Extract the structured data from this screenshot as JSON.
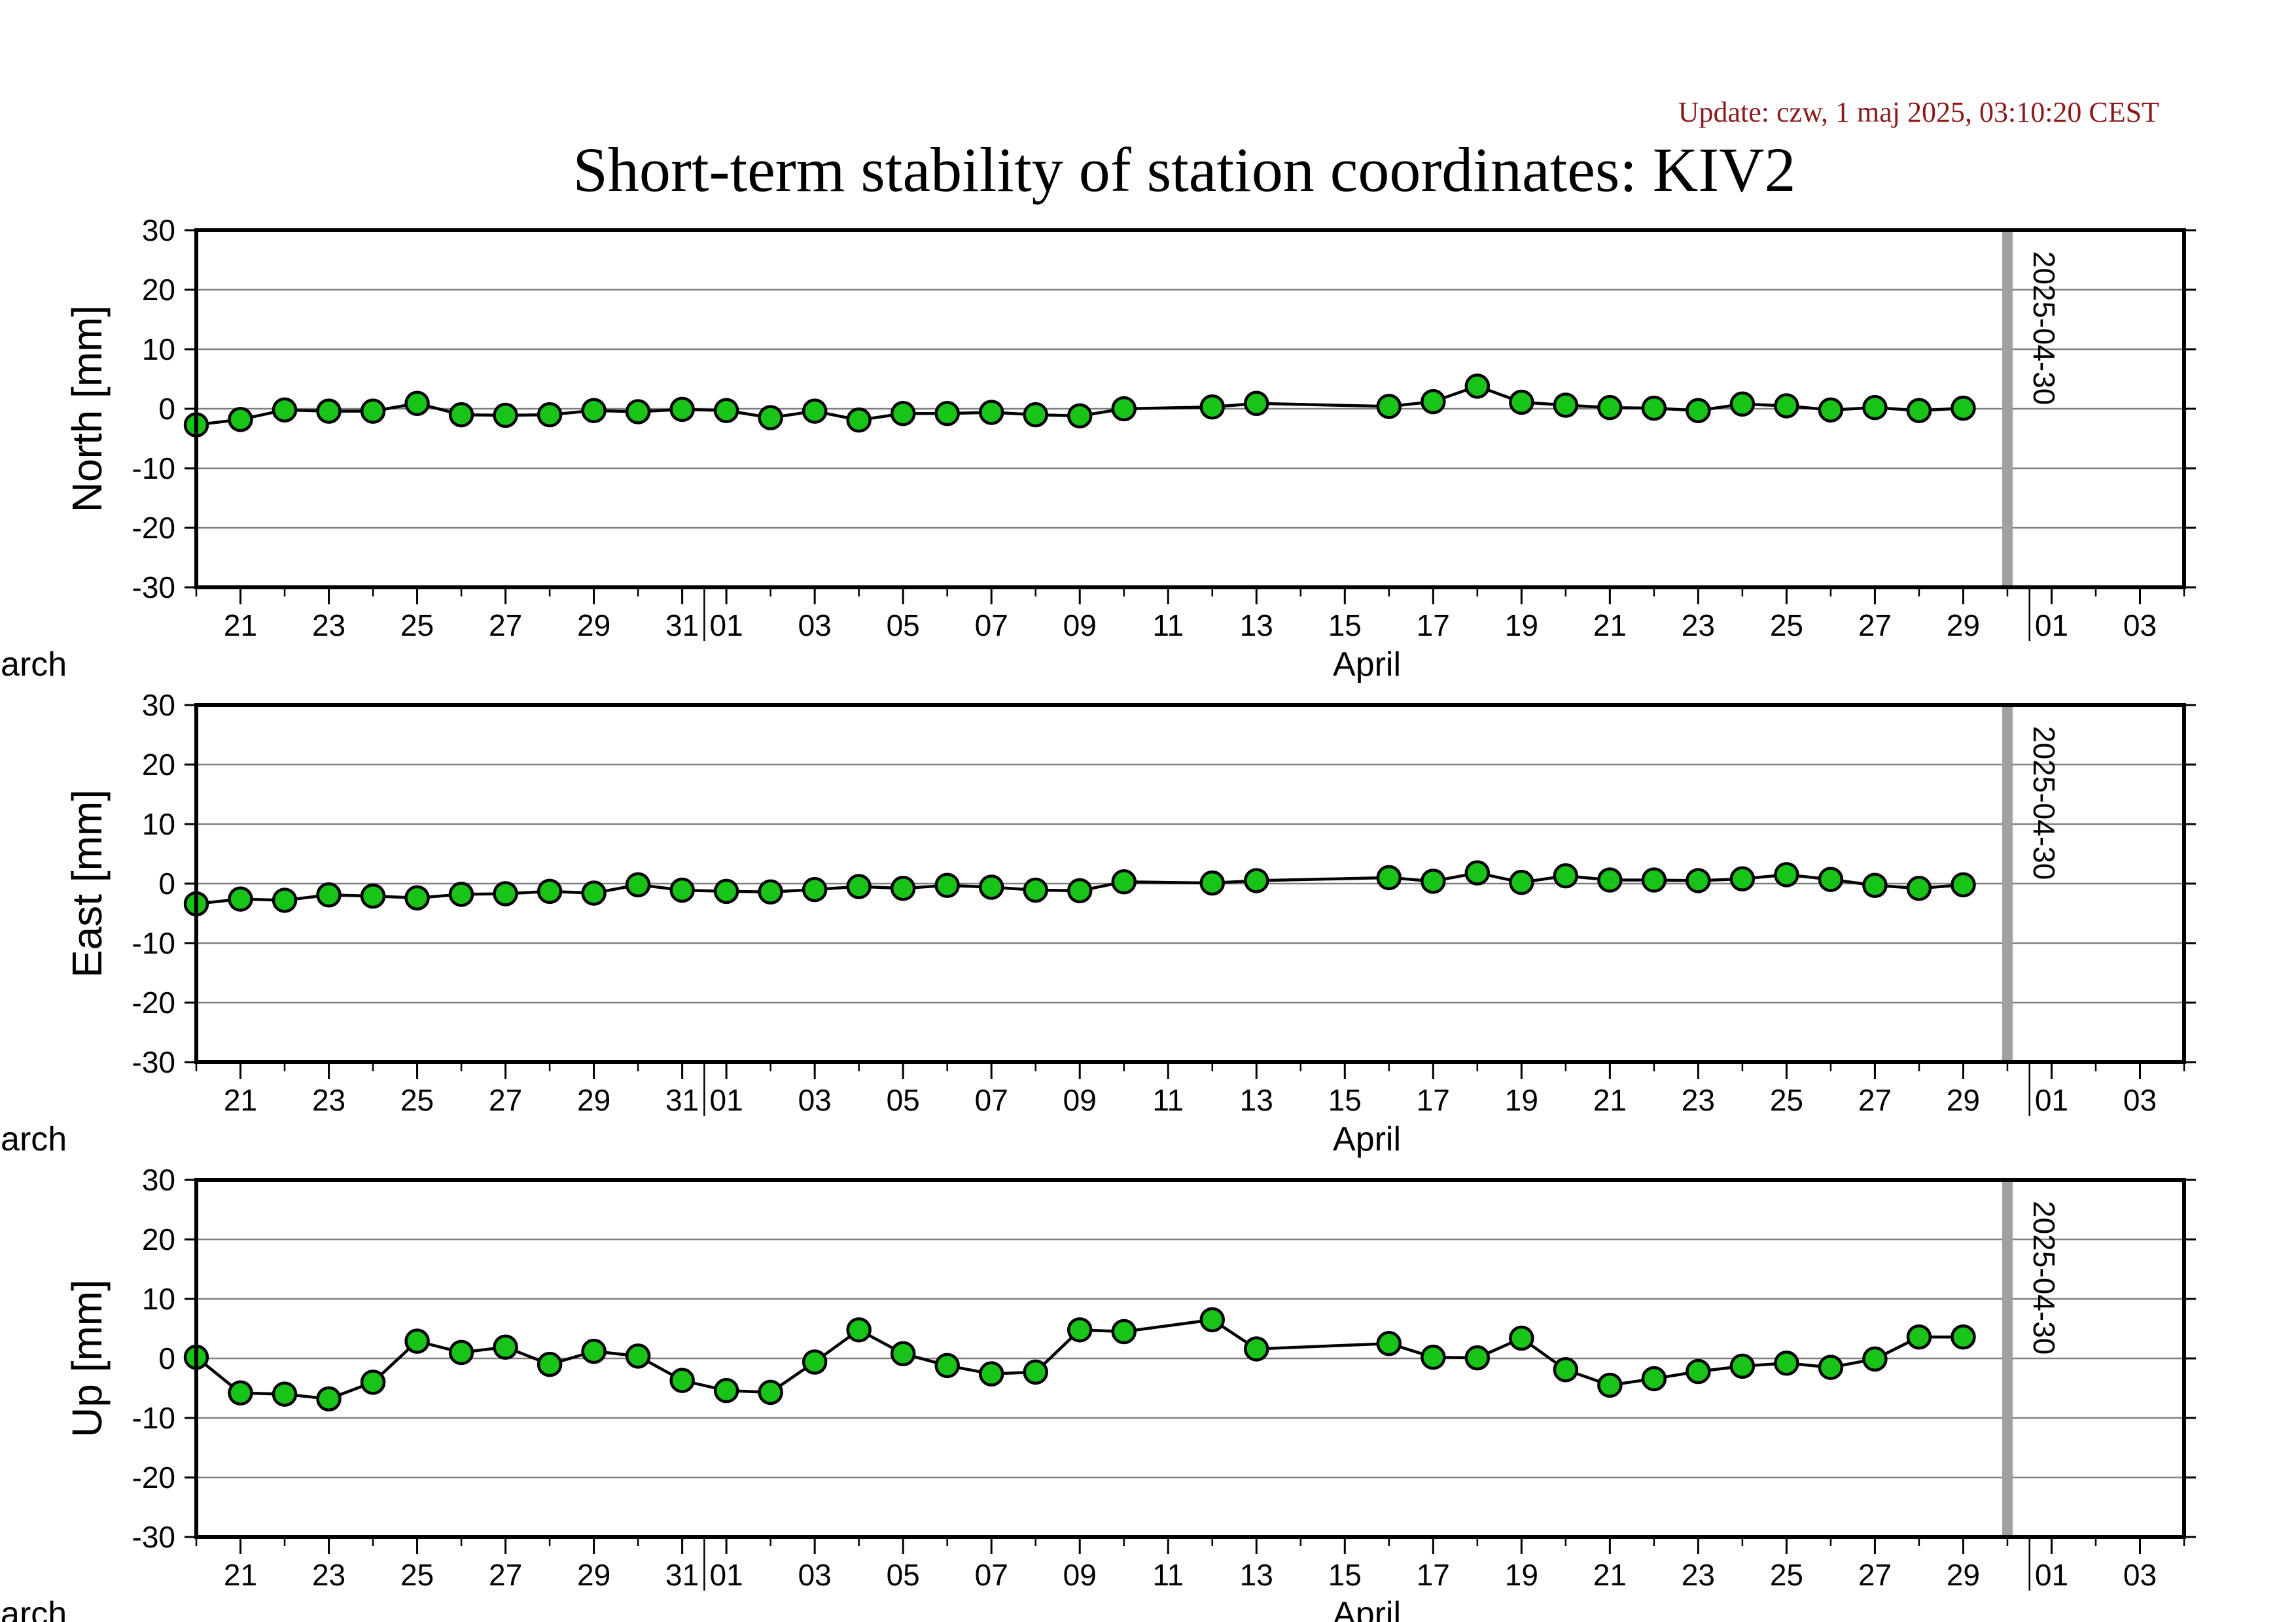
{
  "update_text": "Update: czw, 1 maj 2025, 03:10:20 CEST",
  "title": "Short-term stability of station coordinates: KIV2",
  "colors": {
    "marker_fill": "#18c418",
    "marker_stroke": "#000000",
    "line": "#000000",
    "grid": "#7f7f7f",
    "today_bar": "#a0a0a0",
    "update_text": "#8b1a1a",
    "axis": "#000000"
  },
  "chart_data": [
    {
      "type": "line",
      "ylabel": "North [mm]",
      "ylim": [
        -30,
        30
      ],
      "yticks": [
        "30",
        "20",
        "10",
        "0",
        "-10",
        "-20",
        "-30"
      ],
      "grid": true,
      "xlim": [
        "2025-03-20",
        "2025-05-04"
      ],
      "xticks": [
        "21",
        "23",
        "25",
        "27",
        "29",
        "31",
        "01",
        "03",
        "05",
        "07",
        "09",
        "11",
        "13",
        "15",
        "17",
        "19",
        "21",
        "23",
        "25",
        "27",
        "29",
        "01",
        "03"
      ],
      "months": [
        "March",
        "April"
      ],
      "today_label": "2025-04-30",
      "x": [
        "2025-03-20",
        "2025-03-21",
        "2025-03-22",
        "2025-03-23",
        "2025-03-24",
        "2025-03-25",
        "2025-03-26",
        "2025-03-27",
        "2025-03-28",
        "2025-03-29",
        "2025-03-30",
        "2025-03-31",
        "2025-04-01",
        "2025-04-02",
        "2025-04-03",
        "2025-04-04",
        "2025-04-05",
        "2025-04-06",
        "2025-04-07",
        "2025-04-08",
        "2025-04-09",
        "2025-04-10",
        "2025-04-12",
        "2025-04-13",
        "2025-04-16",
        "2025-04-17",
        "2025-04-18",
        "2025-04-19",
        "2025-04-20",
        "2025-04-21",
        "2025-04-22",
        "2025-04-23",
        "2025-04-24",
        "2025-04-25",
        "2025-04-26",
        "2025-04-27",
        "2025-04-28",
        "2025-04-29"
      ],
      "y": [
        -2.7,
        -1.8,
        -0.2,
        -0.4,
        -0.4,
        0.9,
        -1.0,
        -1.1,
        -1.0,
        -0.3,
        -0.5,
        -0.1,
        -0.3,
        -1.5,
        -0.4,
        -1.9,
        -0.8,
        -0.8,
        -0.6,
        -1.0,
        -1.2,
        0.0,
        0.3,
        0.9,
        0.4,
        1.2,
        3.8,
        1.1,
        0.6,
        0.2,
        0.1,
        -0.3,
        0.8,
        0.5,
        -0.2,
        0.2,
        -0.3,
        0.1
      ]
    },
    {
      "type": "line",
      "ylabel": "East [mm]",
      "ylim": [
        -30,
        30
      ],
      "yticks": [
        "30",
        "20",
        "10",
        "0",
        "-10",
        "-20",
        "-30"
      ],
      "grid": true,
      "xlim": [
        "2025-03-20",
        "2025-05-04"
      ],
      "xticks": [
        "21",
        "23",
        "25",
        "27",
        "29",
        "31",
        "01",
        "03",
        "05",
        "07",
        "09",
        "11",
        "13",
        "15",
        "17",
        "19",
        "21",
        "23",
        "25",
        "27",
        "29",
        "01",
        "03"
      ],
      "months": [
        "March",
        "April"
      ],
      "today_label": "2025-04-30",
      "x": [
        "2025-03-20",
        "2025-03-21",
        "2025-03-22",
        "2025-03-23",
        "2025-03-24",
        "2025-03-25",
        "2025-03-26",
        "2025-03-27",
        "2025-03-28",
        "2025-03-29",
        "2025-03-30",
        "2025-03-31",
        "2025-04-01",
        "2025-04-02",
        "2025-04-03",
        "2025-04-04",
        "2025-04-05",
        "2025-04-06",
        "2025-04-07",
        "2025-04-08",
        "2025-04-09",
        "2025-04-10",
        "2025-04-12",
        "2025-04-13",
        "2025-04-16",
        "2025-04-17",
        "2025-04-18",
        "2025-04-19",
        "2025-04-20",
        "2025-04-21",
        "2025-04-22",
        "2025-04-23",
        "2025-04-24",
        "2025-04-25",
        "2025-04-26",
        "2025-04-27",
        "2025-04-28",
        "2025-04-29"
      ],
      "y": [
        -3.4,
        -2.6,
        -2.8,
        -1.9,
        -2.1,
        -2.4,
        -1.8,
        -1.7,
        -1.3,
        -1.6,
        -0.2,
        -1.1,
        -1.3,
        -1.4,
        -1.0,
        -0.5,
        -0.8,
        -0.3,
        -0.6,
        -1.1,
        -1.2,
        0.3,
        0.1,
        0.5,
        1.0,
        0.4,
        1.8,
        0.2,
        1.3,
        0.6,
        0.6,
        0.5,
        0.8,
        1.5,
        0.7,
        -0.3,
        -0.8,
        -0.2
      ]
    },
    {
      "type": "line",
      "ylabel": "Up [mm]",
      "ylim": [
        -30,
        30
      ],
      "yticks": [
        "30",
        "20",
        "10",
        "0",
        "-10",
        "-20",
        "-30"
      ],
      "grid": true,
      "xlim": [
        "2025-03-20",
        "2025-05-04"
      ],
      "xticks": [
        "21",
        "23",
        "25",
        "27",
        "29",
        "31",
        "01",
        "03",
        "05",
        "07",
        "09",
        "11",
        "13",
        "15",
        "17",
        "19",
        "21",
        "23",
        "25",
        "27",
        "29",
        "01",
        "03"
      ],
      "months": [
        "March",
        "April"
      ],
      "today_label": "2025-04-30",
      "x": [
        "2025-03-20",
        "2025-03-21",
        "2025-03-22",
        "2025-03-23",
        "2025-03-24",
        "2025-03-25",
        "2025-03-26",
        "2025-03-27",
        "2025-03-28",
        "2025-03-29",
        "2025-03-30",
        "2025-03-31",
        "2025-04-01",
        "2025-04-02",
        "2025-04-03",
        "2025-04-04",
        "2025-04-05",
        "2025-04-06",
        "2025-04-07",
        "2025-04-08",
        "2025-04-09",
        "2025-04-10",
        "2025-04-12",
        "2025-04-13",
        "2025-04-16",
        "2025-04-17",
        "2025-04-18",
        "2025-04-19",
        "2025-04-20",
        "2025-04-21",
        "2025-04-22",
        "2025-04-23",
        "2025-04-24",
        "2025-04-25",
        "2025-04-26",
        "2025-04-27",
        "2025-04-28",
        "2025-04-29"
      ],
      "y": [
        0.2,
        -5.8,
        -6.0,
        -6.8,
        -4.0,
        2.9,
        1.0,
        1.9,
        -1.0,
        1.2,
        0.4,
        -3.7,
        -5.4,
        -5.7,
        -0.6,
        4.8,
        0.8,
        -1.2,
        -2.6,
        -2.3,
        4.8,
        4.5,
        6.5,
        1.6,
        2.5,
        0.2,
        0.1,
        3.4,
        -1.9,
        -4.5,
        -3.4,
        -2.2,
        -1.3,
        -0.8,
        -1.5,
        -0.1,
        3.6,
        3.6
      ]
    }
  ]
}
